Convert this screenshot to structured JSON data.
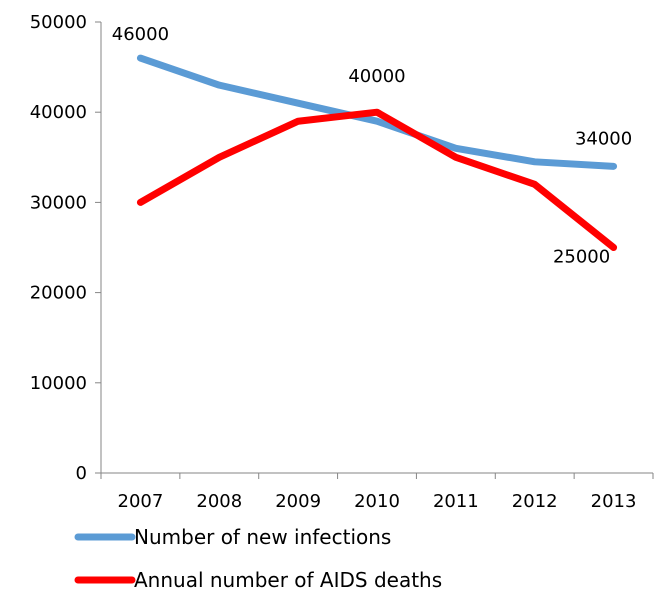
{
  "chart_data": {
    "type": "line",
    "categories": [
      "2007",
      "2008",
      "2009",
      "2010",
      "2011",
      "2012",
      "2013"
    ],
    "ylim": [
      0,
      50000
    ],
    "yticks": [
      0,
      10000,
      20000,
      30000,
      40000,
      50000
    ],
    "grid": false,
    "legend_position": "bottom",
    "series": [
      {
        "name": "Number of new infections",
        "color": "#5B9BD5",
        "values": [
          46000,
          43000,
          41000,
          39000,
          36000,
          34500,
          34000
        ]
      },
      {
        "name": "Annual number of AIDS deaths",
        "color": "#FF0000",
        "values": [
          30000,
          35000,
          39000,
          40000,
          35000,
          32000,
          25000
        ]
      }
    ],
    "annotations": [
      {
        "series": 0,
        "category": "2007",
        "text": "46000"
      },
      {
        "series": 1,
        "category": "2010",
        "text": "40000"
      },
      {
        "series": 0,
        "category": "2013",
        "text": "34000"
      },
      {
        "series": 1,
        "category": "2013",
        "text": "25000"
      }
    ]
  }
}
